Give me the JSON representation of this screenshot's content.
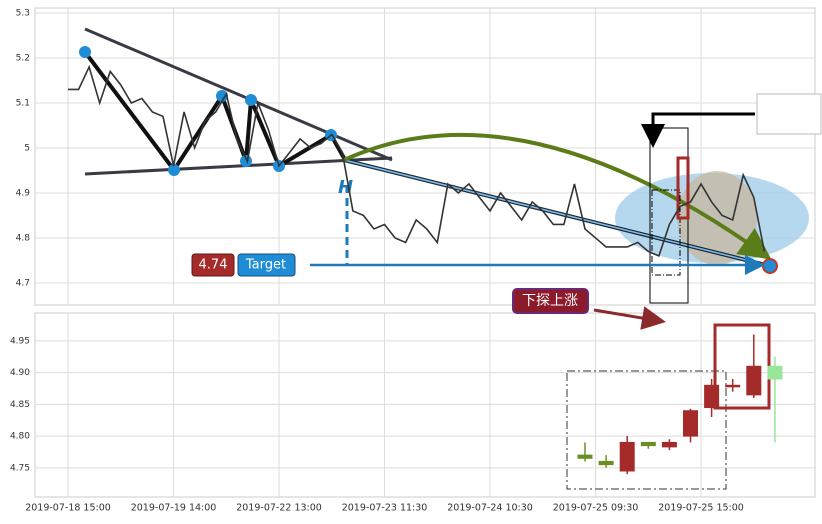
{
  "chart_data": [
    {
      "type": "line",
      "color": "#333333",
      "x": [
        0,
        1,
        2,
        3,
        4,
        5,
        6,
        7,
        8,
        9,
        10,
        11,
        12,
        13,
        14,
        15,
        16,
        17,
        18,
        19,
        20,
        21,
        22,
        23,
        24,
        25,
        26,
        27,
        28,
        29,
        30,
        31,
        32,
        33,
        34,
        35,
        36,
        37,
        38,
        39,
        40,
        41,
        42,
        43,
        44,
        45,
        46,
        47,
        48,
        49,
        50,
        51,
        52,
        53,
        54,
        55,
        56,
        57,
        58,
        59,
        60,
        61,
        62,
        63,
        64,
        65,
        66
      ],
      "values": [
        5.13,
        5.13,
        5.18,
        5.1,
        5.17,
        5.14,
        5.1,
        5.11,
        5.08,
        5.07,
        4.96,
        5.08,
        5.0,
        5.06,
        5.08,
        5.12,
        5.02,
        4.97,
        5.1,
        5.04,
        4.96,
        4.99,
        5.02,
        5.0,
        5.01,
        5.03,
        4.99,
        4.86,
        4.85,
        4.82,
        4.83,
        4.8,
        4.79,
        4.84,
        4.82,
        4.79,
        4.92,
        4.9,
        4.92,
        4.89,
        4.86,
        4.9,
        4.87,
        4.84,
        4.88,
        4.86,
        4.83,
        4.83,
        4.92,
        4.82,
        4.8,
        4.78,
        4.78,
        4.78,
        4.79,
        4.77,
        4.76,
        4.83,
        4.87,
        4.88,
        4.92,
        4.88,
        4.85,
        4.84,
        4.94,
        4.89,
        4.77
      ],
      "xlim": [
        -3.13,
        70.8
      ],
      "ylim": [
        4.651,
        5.311
      ],
      "yticks": [
        4.7,
        4.8,
        4.9,
        5.0,
        5.1,
        5.2,
        5.3
      ],
      "grid": true,
      "annotations": {
        "pattern_label": "H",
        "target_value": 4.74,
        "target_text": "Target",
        "callout": "下探上涨"
      }
    },
    {
      "type": "candlestick",
      "x": [
        49,
        51,
        53,
        55,
        57,
        59,
        61,
        63,
        65,
        67
      ],
      "open": [
        4.77,
        4.76,
        4.745,
        4.79,
        4.783,
        4.8,
        4.845,
        4.88,
        4.865,
        4.91
      ],
      "high": [
        4.79,
        4.77,
        4.8,
        4.79,
        4.795,
        4.843,
        4.89,
        4.89,
        4.96,
        4.925
      ],
      "low": [
        4.76,
        4.75,
        4.74,
        4.78,
        4.778,
        4.79,
        4.83,
        4.87,
        4.86,
        4.79
      ],
      "close": [
        4.765,
        4.755,
        4.79,
        4.785,
        4.79,
        4.84,
        4.88,
        4.88,
        4.91,
        4.89
      ],
      "colors": [
        "#6b8e23",
        "#6b8e23",
        "#a52a2a",
        "#6b8e23",
        "#a52a2a",
        "#a52a2a",
        "#a52a2a",
        "#a52a2a",
        "#a52a2a",
        "#98e698"
      ],
      "xlim": [
        -3.13,
        70.8
      ],
      "ylim": [
        4.704,
        4.994
      ],
      "yticks": [
        4.75,
        {
          "value": 4.8,
          "label": "4.80"
        },
        4.85,
        {
          "value": 4.9,
          "label": "4.90"
        },
        4.95
      ],
      "xticks": [
        {
          "value": 0,
          "label": "2019-07-18 15:00"
        },
        {
          "value": 10,
          "label": "2019-07-19 14:00"
        },
        {
          "value": 20,
          "label": "2019-07-22 13:00"
        },
        {
          "value": 30,
          "label": "2019-07-23 11:30"
        },
        {
          "value": 40,
          "label": "2019-07-24 10:30"
        },
        {
          "value": 50,
          "label": "2019-07-25 09:30"
        },
        {
          "value": 60,
          "label": "2019-07-25 15:00"
        }
      ],
      "grid": true
    }
  ]
}
